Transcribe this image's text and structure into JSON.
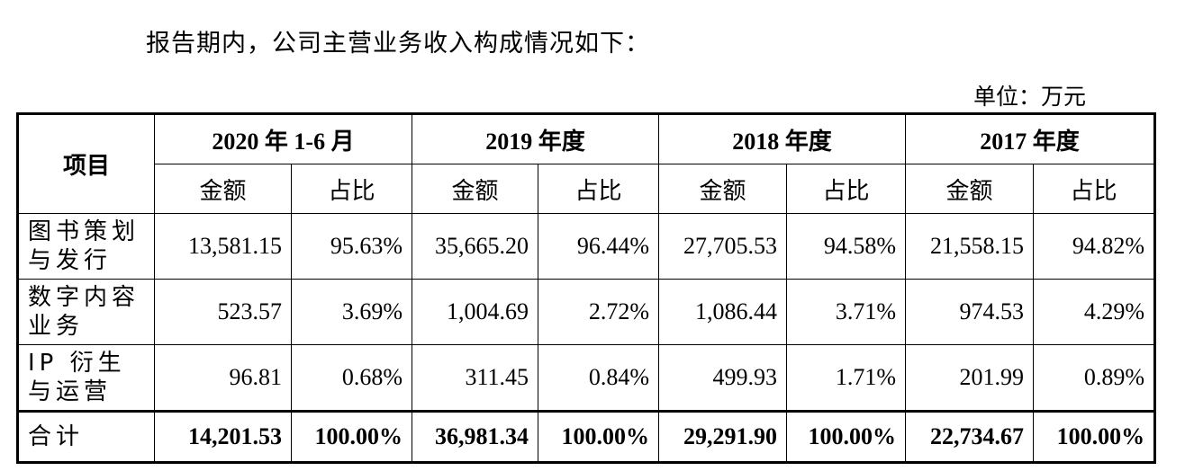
{
  "intro_text": "报告期内，公司主营业务收入构成情况如下：",
  "unit_label": "单位：万元",
  "table": {
    "item_header": "项目",
    "periods": [
      "2020 年 1-6 月",
      "2019 年度",
      "2018 年度",
      "2017 年度"
    ],
    "sub_headers": {
      "amount": "金额",
      "ratio": "占比"
    },
    "rows": [
      {
        "label": "图书策划与发行",
        "values": [
          "13,581.15",
          "95.63%",
          "35,665.20",
          "96.44%",
          "27,705.53",
          "94.58%",
          "21,558.15",
          "94.82%"
        ]
      },
      {
        "label": "数字内容业务",
        "values": [
          "523.57",
          "3.69%",
          "1,004.69",
          "2.72%",
          "1,086.44",
          "3.71%",
          "974.53",
          "4.29%"
        ]
      },
      {
        "label": "IP 衍生与运营",
        "values": [
          "96.81",
          "0.68%",
          "311.45",
          "0.84%",
          "499.93",
          "1.71%",
          "201.99",
          "0.89%"
        ]
      }
    ],
    "total": {
      "label": "合计",
      "values": [
        "14,201.53",
        "100.00%",
        "36,981.34",
        "100.00%",
        "29,291.90",
        "100.00%",
        "22,734.67",
        "100.00%"
      ]
    }
  }
}
